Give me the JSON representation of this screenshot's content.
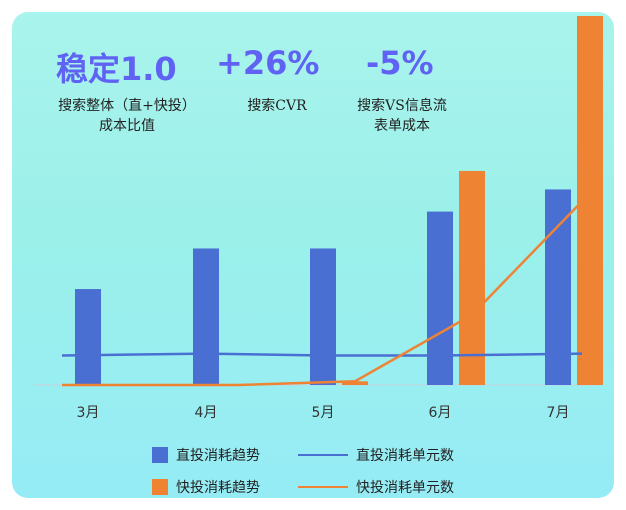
{
  "stats": [
    {
      "value": "稳定1.0",
      "label_lines": [
        "搜索整体（直+快投）",
        "成本比值"
      ]
    },
    {
      "value": "+26%",
      "label_lines": [
        "搜索CVR"
      ]
    },
    {
      "value": "-5%",
      "label_lines": [
        "搜索VS信息流",
        "表单成本"
      ]
    }
  ],
  "legend": {
    "bar1": "直投消耗趋势",
    "line1": "直投消耗单元数",
    "bar2": "快投消耗趋势",
    "line2": "快投消耗单元数"
  },
  "colors": {
    "direct": "#4a6fd3",
    "fast": "#ee8334",
    "direct_line": "#4a6fd3",
    "fast_line": "#ee8334",
    "stat": "#5f62f2"
  },
  "chart_data": {
    "type": "bar",
    "categories": [
      "3月",
      "4月",
      "5月",
      "6月",
      "7月"
    ],
    "ylim": [
      0,
      100
    ],
    "series": [
      {
        "name": "直投消耗趋势",
        "kind": "bar",
        "values": [
          26,
          37,
          37,
          47,
          53
        ]
      },
      {
        "name": "快投消耗趋势",
        "kind": "bar",
        "values": [
          0,
          0,
          1,
          58,
          100
        ]
      },
      {
        "name": "直投消耗单元数",
        "kind": "line",
        "values": [
          8,
          8.5,
          8,
          8,
          8.5
        ]
      },
      {
        "name": "快投消耗单元数",
        "kind": "line",
        "values": [
          0,
          0,
          1,
          19,
          52
        ]
      }
    ]
  }
}
